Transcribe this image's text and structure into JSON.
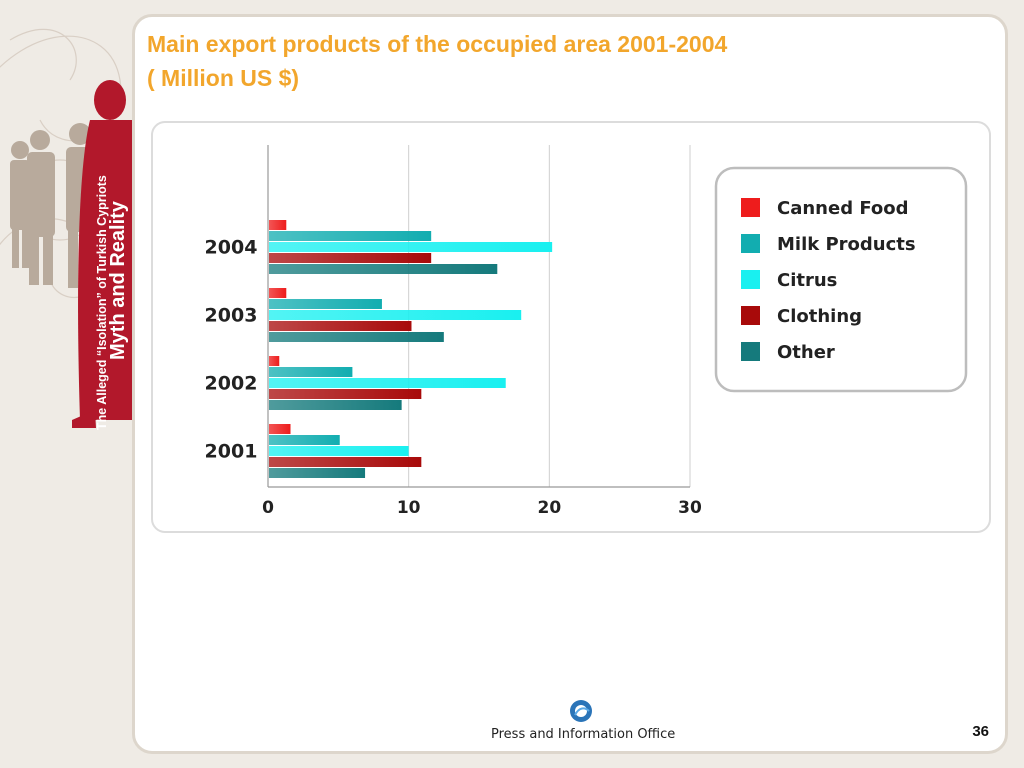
{
  "slide": {
    "title_line1": "Main export products of the occupied area 2001-2004",
    "title_line2": "( Million US $)",
    "side_banner": {
      "line1": "The Alleged “Isolation” of Turkish Cypriots",
      "line2": "Myth and Reality"
    },
    "footer": "Press and Information Office",
    "page_number": "36"
  },
  "colors": {
    "accent_title": "#f2a62c",
    "banner_red": "#b2182b",
    "canned_food": "#ee1c1c",
    "milk_products": "#12adb0",
    "citrus": "#19f0f0",
    "clothing": "#a80a0a",
    "other": "#157a7c"
  },
  "chart_data": {
    "type": "bar",
    "orientation": "horizontal",
    "title": "Main export products of the occupied area 2001-2004 ( Million US $)",
    "categories": [
      "2004",
      "2003",
      "2002",
      "2001"
    ],
    "xlim": [
      0,
      30
    ],
    "xticks": [
      "0",
      "10",
      "20",
      "30"
    ],
    "grid": true,
    "legend_position": "right",
    "series": [
      {
        "name": "Canned Food",
        "color": "#ee1c1c",
        "values": [
          1.3,
          1.3,
          0.8,
          1.6
        ]
      },
      {
        "name": "Milk Products",
        "color": "#12adb0",
        "values": [
          11.6,
          8.1,
          6.0,
          5.1
        ]
      },
      {
        "name": "Citrus",
        "color": "#19f0f0",
        "values": [
          20.2,
          18.0,
          16.9,
          10.0
        ]
      },
      {
        "name": "Clothing",
        "color": "#a80a0a",
        "values": [
          11.6,
          10.2,
          10.9,
          10.9
        ]
      },
      {
        "name": "Other",
        "color": "#157a7c",
        "values": [
          16.3,
          12.5,
          9.5,
          6.9
        ]
      }
    ]
  }
}
